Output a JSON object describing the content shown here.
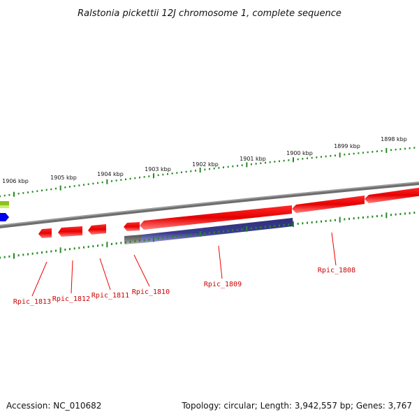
{
  "title": "Ralstonia pickettii 12J chromosome 1, complete sequence",
  "accession": "Accession: NC_010682",
  "summary": "Topology: circular; Length: 3,942,557 bp; Genes: 3,767",
  "ruler_labels": [
    "1906 kbp",
    "1905 kbp",
    "1904 kbp",
    "1903 kbp",
    "1902 kbp",
    "1901 kbp",
    "1900 kbp",
    "1899 kbp",
    "1898 kbp"
  ],
  "genes": [
    {
      "label": "Rpic_1813",
      "strand": "reverse",
      "color": "#ee0000"
    },
    {
      "label": "Rpic_1812",
      "strand": "reverse",
      "color": "#ee0000"
    },
    {
      "label": "Rpic_1811",
      "strand": "reverse",
      "color": "#ee0000"
    },
    {
      "label": "Rpic_1810",
      "strand": "reverse",
      "color": "#ee0000"
    },
    {
      "label": "Rpic_1809",
      "strand": "reverse",
      "color": "#ee0000"
    },
    {
      "label": "Rpic_1808",
      "strand": "reverse",
      "color": "#ee0000"
    }
  ],
  "colors": {
    "backbone": "#888888",
    "cds": "#ee0000",
    "ruler_ticks": "#228b22",
    "feature_track": "#3a3a8c",
    "edge_green": "#9acd32",
    "edge_blue": "#0000ff"
  }
}
